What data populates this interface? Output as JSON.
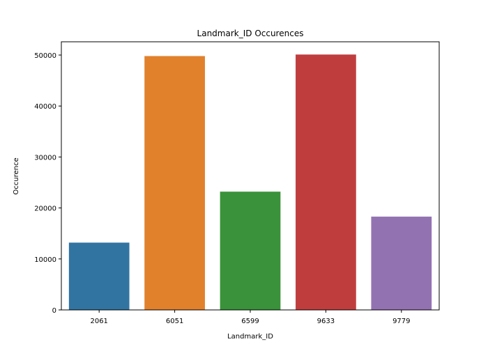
{
  "chart_data": {
    "type": "bar",
    "title": "Landmark_ID Occurences",
    "xlabel": "Landmark_ID",
    "ylabel": "Occurence",
    "categories": [
      "2061",
      "6051",
      "6599",
      "9633",
      "9779"
    ],
    "values": [
      13200,
      49800,
      23200,
      50100,
      18300
    ],
    "colors": [
      "#3274a1",
      "#e1812c",
      "#3a923a",
      "#c03d3e",
      "#9372b2"
    ],
    "ylim": [
      0,
      52600
    ],
    "yticks": [
      0,
      10000,
      20000,
      30000,
      40000,
      50000
    ],
    "ytick_labels": [
      "0",
      "10000",
      "20000",
      "30000",
      "40000",
      "50000"
    ],
    "grid": false,
    "legend": "none"
  }
}
